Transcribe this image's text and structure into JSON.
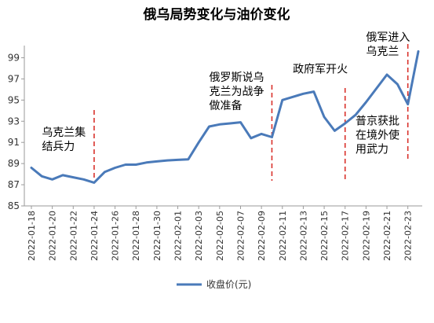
{
  "chart_data": {
    "type": "line",
    "title": "俄乌局势变化与油价变化",
    "xlabel": "",
    "ylabel": "",
    "ylim": [
      85,
      100
    ],
    "yticks": [
      85,
      87,
      89,
      91,
      93,
      95,
      97,
      99
    ],
    "grid": false,
    "legend_position": "bottom",
    "x_tick_labels": [
      "2022-01-18",
      "2022-01-20",
      "2022-01-22",
      "2022-01-24",
      "2022-01-26",
      "2022-01-28",
      "2022-01-30",
      "2022-02-01",
      "2022-02-03",
      "2022-02-05",
      "2022-02-07",
      "2022-02-09",
      "2022-02-11",
      "2022-02-13",
      "2022-02-15",
      "2022-02-17",
      "2022-02-19",
      "2022-02-21",
      "2022-02-23"
    ],
    "x_start": "2022-01-18",
    "x_end": "2022-02-24",
    "series": [
      {
        "name": "收盘价(元)",
        "color": "#4a7ab9",
        "points": [
          [
            "2022-01-18",
            88.6
          ],
          [
            "2022-01-19",
            87.8
          ],
          [
            "2022-01-20",
            87.5
          ],
          [
            "2022-01-21",
            87.9
          ],
          [
            "2022-01-22",
            87.7
          ],
          [
            "2022-01-23",
            87.5
          ],
          [
            "2022-01-24",
            87.2
          ],
          [
            "2022-01-25",
            88.2
          ],
          [
            "2022-01-26",
            88.6
          ],
          [
            "2022-01-27",
            88.9
          ],
          [
            "2022-01-28",
            88.9
          ],
          [
            "2022-01-29",
            89.1
          ],
          [
            "2022-01-30",
            89.2
          ],
          [
            "2022-01-31",
            89.3
          ],
          [
            "2022-02-01",
            89.35
          ],
          [
            "2022-02-02",
            89.4
          ],
          [
            "2022-02-03",
            91.0
          ],
          [
            "2022-02-04",
            92.5
          ],
          [
            "2022-02-05",
            92.7
          ],
          [
            "2022-02-06",
            92.8
          ],
          [
            "2022-02-07",
            92.9
          ],
          [
            "2022-02-08",
            91.4
          ],
          [
            "2022-02-09",
            91.8
          ],
          [
            "2022-02-10",
            91.5
          ],
          [
            "2022-02-11",
            95.0
          ],
          [
            "2022-02-12",
            95.3
          ],
          [
            "2022-02-13",
            95.6
          ],
          [
            "2022-02-14",
            95.8
          ],
          [
            "2022-02-15",
            93.4
          ],
          [
            "2022-02-16",
            92.1
          ],
          [
            "2022-02-17",
            92.8
          ],
          [
            "2022-02-18",
            93.6
          ],
          [
            "2022-02-19",
            94.8
          ],
          [
            "2022-02-20",
            96.1
          ],
          [
            "2022-02-21",
            97.4
          ],
          [
            "2022-02-22",
            96.5
          ],
          [
            "2022-02-23",
            94.6
          ],
          [
            "2022-02-24",
            99.6
          ]
        ]
      }
    ],
    "events": [
      {
        "date": "2022-01-24",
        "lines": [
          "乌克兰集",
          "结兵力"
        ],
        "label_date": "2022-01-19",
        "label_y": 91.6
      },
      {
        "date": "2022-02-10",
        "lines": [
          "俄罗斯说乌",
          "克兰为战争",
          "做准备"
        ],
        "label_date": "2022-02-04",
        "label_y": 96.8
      },
      {
        "date": "2022-02-17",
        "lines": [
          "政府军开火"
        ],
        "label_date": "2022-02-12",
        "label_y": 97.6
      },
      {
        "date": "2022-02-17",
        "lines": [
          "普京获批",
          "在境外使",
          "用武力"
        ],
        "label_date": "2022-02-18",
        "label_y": 92.7,
        "no_line": true
      },
      {
        "date": "2022-02-23",
        "lines": [
          "俄军进入",
          "乌克兰"
        ],
        "label_date": "2022-02-19",
        "label_y": 100.6
      }
    ]
  }
}
